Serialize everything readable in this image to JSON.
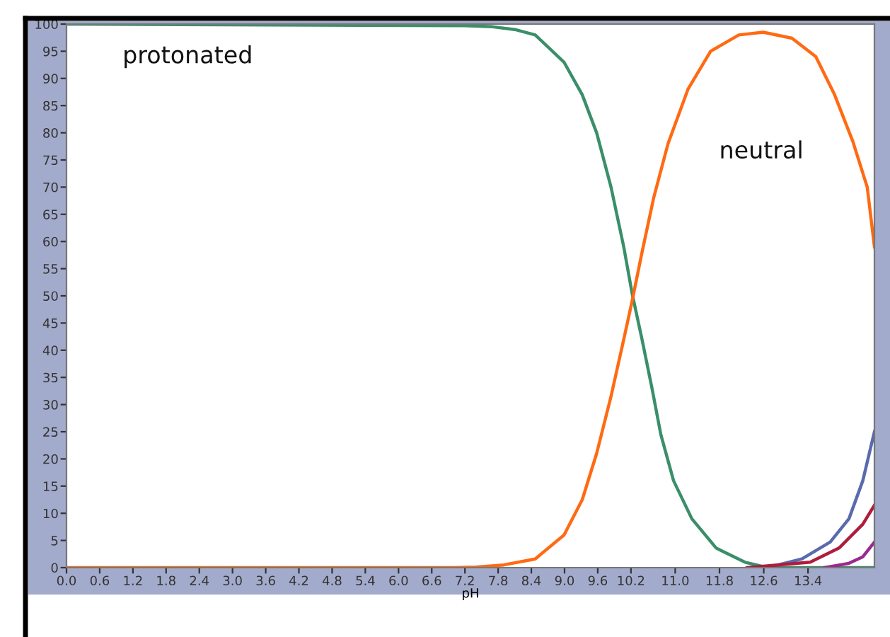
{
  "chart_data": {
    "type": "line",
    "xlabel": "pH",
    "xlim": [
      0,
      14.6
    ],
    "ylim": [
      0,
      100
    ],
    "xticks": [
      {
        "value": 0.0,
        "label": "0.0"
      },
      {
        "value": 0.6,
        "label": "0.6"
      },
      {
        "value": 1.2,
        "label": "1.2"
      },
      {
        "value": 1.8,
        "label": "1.8"
      },
      {
        "value": 2.4,
        "label": "2.4"
      },
      {
        "value": 3.0,
        "label": "3.0"
      },
      {
        "value": 3.6,
        "label": "3.6"
      },
      {
        "value": 4.2,
        "label": "4.2"
      },
      {
        "value": 4.8,
        "label": "4.8"
      },
      {
        "value": 5.4,
        "label": "5.4"
      },
      {
        "value": 6.0,
        "label": "6.0"
      },
      {
        "value": 6.6,
        "label": "6.6"
      },
      {
        "value": 7.2,
        "label": "7.2"
      },
      {
        "value": 7.8,
        "label": "7.8"
      },
      {
        "value": 8.4,
        "label": "8.4"
      },
      {
        "value": 9.0,
        "label": "9.0"
      },
      {
        "value": 9.6,
        "label": "9.6"
      },
      {
        "value": 10.2,
        "label": "10.2"
      },
      {
        "value": 11.0,
        "label": "11.0"
      },
      11.8,
      12.6,
      13.4
    ],
    "yticks": [
      0,
      5,
      10,
      15,
      20,
      25,
      30,
      35,
      40,
      45,
      50,
      55,
      60,
      65,
      70,
      75,
      80,
      85,
      90,
      95,
      100
    ],
    "grid": false,
    "legend": false,
    "marker": "none",
    "line_style": "solid",
    "series": [
      {
        "color": "#3a8f6a",
        "x": [
          0,
          7.2,
          7.7,
          8.1,
          8.47,
          8.99,
          9.32,
          9.58,
          9.84,
          10.07,
          10.22,
          10.4,
          10.58,
          10.74,
          10.97,
          11.3,
          11.74,
          12.26,
          12.67,
          14.6
        ],
        "values": [
          100,
          99.7,
          99.5,
          99,
          98,
          93,
          87,
          80,
          70,
          59,
          50.5,
          42,
          33,
          24.5,
          16,
          9,
          3.6,
          1,
          0,
          0
        ]
      },
      {
        "color": "#ff6a13",
        "x": [
          0,
          7.0,
          7.4,
          7.9,
          8.47,
          8.99,
          9.32,
          9.58,
          9.84,
          10.07,
          10.22,
          10.4,
          10.61,
          10.87,
          11.23,
          11.64,
          12.15,
          12.59,
          13.11,
          13.54,
          13.88,
          14.21,
          14.47,
          14.6
        ],
        "values": [
          0,
          0,
          0.1,
          0.5,
          1.6,
          6,
          12.5,
          21,
          31.5,
          42,
          49,
          58,
          68,
          78,
          88,
          95,
          98,
          98.5,
          97.4,
          94,
          87,
          78.4,
          70,
          59
        ]
      },
      {
        "color": "#5a6aae",
        "x": [
          12.67,
          13.29,
          13.8,
          14.14,
          14.39,
          14.6
        ],
        "values": [
          0,
          1.6,
          4.7,
          9,
          16,
          25
        ]
      },
      {
        "color": "#b01c3c",
        "x": [
          12.3,
          13.44,
          13.96,
          14.39,
          14.6
        ],
        "values": [
          0,
          1,
          3.6,
          8,
          11.5
        ]
      },
      {
        "color": "#9b2a8e",
        "x": [
          13.7,
          14.14,
          14.39,
          14.6
        ],
        "values": [
          0,
          0.8,
          2,
          4.7
        ]
      }
    ],
    "annotations": [
      "protonated",
      "neutral"
    ]
  }
}
